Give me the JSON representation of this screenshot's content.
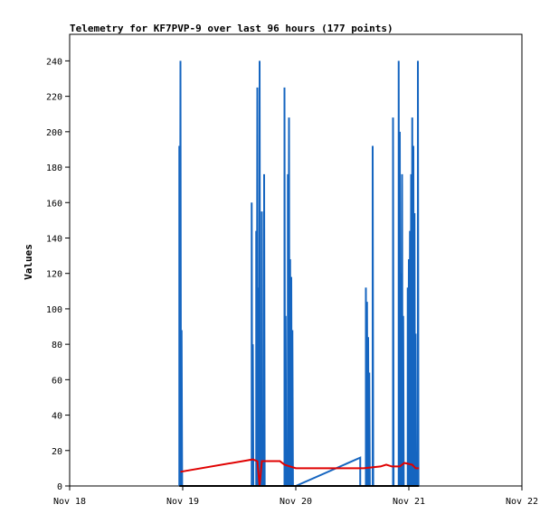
{
  "chart_data": {
    "type": "line",
    "title": "Telemetry for KF7PVP-9 over last 96 hours (177 points)",
    "xlabel": "",
    "ylabel": "Values",
    "x_ticks": [
      "Nov 18",
      "Nov 19",
      "Nov 20",
      "Nov 21",
      "Nov 22"
    ],
    "y_ticks": [
      0,
      20,
      40,
      60,
      80,
      100,
      120,
      140,
      160,
      180,
      200,
      220,
      240
    ],
    "xlim": [
      0,
      4
    ],
    "ylim": [
      0,
      255
    ],
    "grid": false,
    "colors": {
      "series_blue": "#1565c0",
      "series_red": "#e00000",
      "series_black": "#000000",
      "axis": "#000000",
      "background": "#ffffff"
    },
    "series": [
      {
        "color": "#1565c0",
        "points": [
          [
            0.97,
            0
          ],
          [
            0.97,
            192
          ],
          [
            0.975,
            0
          ],
          [
            0.98,
            240
          ],
          [
            0.985,
            0
          ],
          [
            0.99,
            88
          ],
          [
            0.995,
            0
          ],
          [
            1.61,
            0
          ],
          [
            1.61,
            160
          ],
          [
            1.615,
            0
          ],
          [
            1.62,
            80
          ],
          [
            1.625,
            0
          ],
          [
            1.65,
            0
          ],
          [
            1.65,
            144
          ],
          [
            1.655,
            0
          ],
          [
            1.66,
            225
          ],
          [
            1.665,
            0
          ],
          [
            1.67,
            112
          ],
          [
            1.675,
            0
          ],
          [
            1.68,
            0
          ],
          [
            1.68,
            240
          ],
          [
            1.685,
            0
          ],
          [
            1.7,
            0
          ],
          [
            1.7,
            155
          ],
          [
            1.705,
            0
          ],
          [
            1.72,
            0
          ],
          [
            1.72,
            176
          ],
          [
            1.725,
            0
          ],
          [
            1.9,
            0
          ],
          [
            1.9,
            225
          ],
          [
            1.905,
            0
          ],
          [
            1.91,
            96
          ],
          [
            1.915,
            0
          ],
          [
            1.92,
            0
          ],
          [
            1.925,
            16
          ],
          [
            1.93,
            0
          ],
          [
            1.93,
            176
          ],
          [
            1.935,
            0
          ],
          [
            1.94,
            208
          ],
          [
            1.945,
            0
          ],
          [
            1.95,
            128
          ],
          [
            1.955,
            0
          ],
          [
            1.96,
            118
          ],
          [
            1.965,
            0
          ],
          [
            1.97,
            88
          ],
          [
            1.975,
            0
          ],
          [
            2.0,
            0
          ],
          [
            2.57,
            16
          ],
          [
            2.57,
            0
          ],
          [
            2.62,
            0
          ],
          [
            2.62,
            112
          ],
          [
            2.625,
            0
          ],
          [
            2.63,
            104
          ],
          [
            2.635,
            0
          ],
          [
            2.64,
            84
          ],
          [
            2.645,
            0
          ],
          [
            2.65,
            64
          ],
          [
            2.655,
            0
          ],
          [
            2.68,
            0
          ],
          [
            2.68,
            192
          ],
          [
            2.685,
            0
          ],
          [
            2.86,
            0
          ],
          [
            2.86,
            208
          ],
          [
            2.865,
            0
          ],
          [
            2.91,
            0
          ],
          [
            2.91,
            240
          ],
          [
            2.915,
            0
          ],
          [
            2.92,
            200
          ],
          [
            2.925,
            0
          ],
          [
            2.93,
            120
          ],
          [
            2.935,
            0
          ],
          [
            2.94,
            176
          ],
          [
            2.945,
            0
          ],
          [
            2.95,
            96
          ],
          [
            2.955,
            0
          ],
          [
            2.99,
            0
          ],
          [
            2.99,
            112
          ],
          [
            2.995,
            0
          ],
          [
            3.0,
            128
          ],
          [
            3.005,
            0
          ],
          [
            3.01,
            144
          ],
          [
            3.015,
            0
          ],
          [
            3.02,
            176
          ],
          [
            3.025,
            0
          ],
          [
            3.03,
            208
          ],
          [
            3.035,
            0
          ],
          [
            3.04,
            192
          ],
          [
            3.045,
            0
          ],
          [
            3.05,
            154
          ],
          [
            3.055,
            0
          ],
          [
            3.06,
            86
          ],
          [
            3.065,
            0
          ],
          [
            3.08,
            0
          ],
          [
            3.08,
            240
          ],
          [
            3.085,
            0
          ]
        ]
      },
      {
        "color": "#e00000",
        "points": [
          [
            0.98,
            8
          ],
          [
            1.62,
            15
          ],
          [
            1.66,
            14
          ],
          [
            1.68,
            0
          ],
          [
            1.7,
            14
          ],
          [
            1.86,
            14
          ],
          [
            1.9,
            12
          ],
          [
            1.95,
            11
          ],
          [
            2.0,
            10
          ],
          [
            2.4,
            10
          ],
          [
            2.6,
            10
          ],
          [
            2.75,
            11
          ],
          [
            2.8,
            12
          ],
          [
            2.85,
            11
          ],
          [
            2.92,
            11
          ],
          [
            2.96,
            13
          ],
          [
            3.03,
            12
          ],
          [
            3.06,
            10
          ],
          [
            3.09,
            10
          ]
        ]
      },
      {
        "color": "#000000",
        "points": [
          [
            0.97,
            0
          ],
          [
            3.09,
            0
          ]
        ]
      }
    ]
  }
}
